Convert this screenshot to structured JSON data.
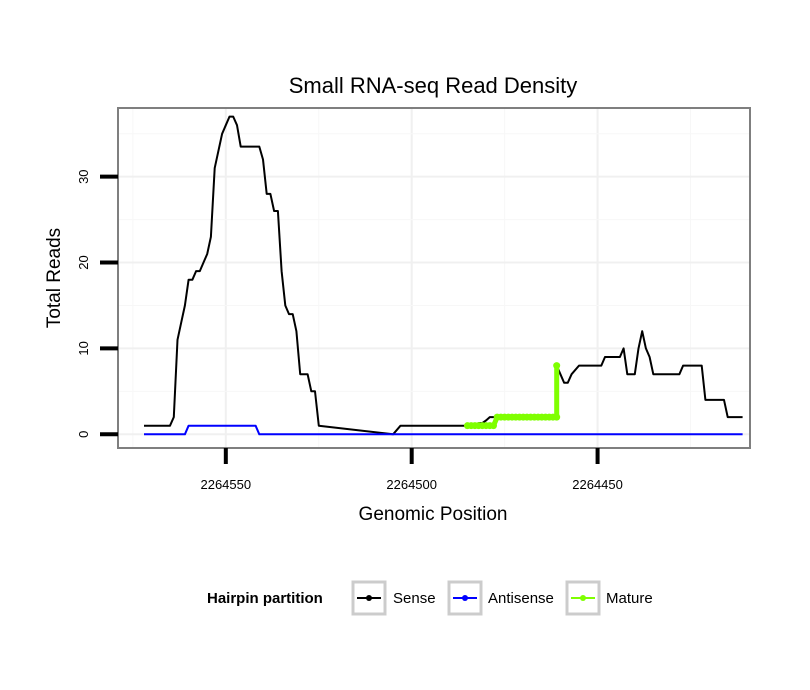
{
  "chart_data": {
    "type": "line",
    "title": "Small RNA-seq Read Density",
    "xlabel": "Genomic Position",
    "ylabel": "Total Reads",
    "xlim": [
      2264579,
      2264409
    ],
    "ylim": [
      -1.6,
      38
    ],
    "x_reversed": true,
    "x_ticks": [
      2264550,
      2264500,
      2264450
    ],
    "x_tick_labels": [
      "2264550",
      "2264500",
      "2264450"
    ],
    "y_ticks": [
      0,
      10,
      20,
      30
    ],
    "y_tick_labels": [
      "0",
      "10",
      "20",
      "30"
    ],
    "grid": true,
    "legend": {
      "title": "Hairpin partition",
      "position": "bottom",
      "entries": [
        {
          "label": "Sense",
          "color": "#000000"
        },
        {
          "label": "Antisense",
          "color": "#0000ff"
        },
        {
          "label": "Mature",
          "color": "#7fff00"
        }
      ]
    },
    "series": [
      {
        "name": "Sense",
        "color": "#000000",
        "x": [
          2264572,
          2264565,
          2264564,
          2264563,
          2264562,
          2264561,
          2264560,
          2264559,
          2264558,
          2264557,
          2264556,
          2264555,
          2264554,
          2264553,
          2264552,
          2264551,
          2264550,
          2264549,
          2264548,
          2264547,
          2264546,
          2264545,
          2264544,
          2264543,
          2264542,
          2264541,
          2264540,
          2264539,
          2264538,
          2264537,
          2264536,
          2264535,
          2264534,
          2264533,
          2264532,
          2264531,
          2264530,
          2264529,
          2264528,
          2264527,
          2264526,
          2264525,
          2264505,
          2264503,
          2264485,
          2264484,
          2264483,
          2264482,
          2264481,
          2264480,
          2264479,
          2264478,
          2264476,
          2264472,
          2264470,
          2264461,
          2264461,
          2264460,
          2264459,
          2264458,
          2264457,
          2264455,
          2264449,
          2264448,
          2264444,
          2264443,
          2264442,
          2264441,
          2264440,
          2264439,
          2264438,
          2264437,
          2264436,
          2264435,
          2264428,
          2264427,
          2264422,
          2264421,
          2264416,
          2264415,
          2264411
        ],
        "y": [
          1,
          1,
          2,
          11,
          13,
          15,
          18,
          18,
          19,
          19,
          20,
          21,
          23,
          31,
          33,
          35,
          36,
          37,
          37,
          36,
          33.5,
          33.5,
          33.5,
          33.5,
          33.5,
          33.5,
          32,
          28,
          28,
          26,
          26,
          19,
          15,
          14,
          14,
          12,
          7,
          7,
          7,
          5,
          5,
          1,
          0,
          1,
          1,
          1.1,
          1.1,
          1.3,
          1.3,
          1.6,
          2,
          2,
          2,
          2,
          2,
          2,
          8,
          7,
          6,
          6,
          7,
          8,
          8,
          9,
          9,
          10,
          7,
          7,
          7,
          10,
          12,
          10,
          9,
          7,
          7,
          8,
          8,
          4,
          4,
          2,
          2
        ]
      },
      {
        "name": "Antisense",
        "color": "#0000ff",
        "x": [
          2264572,
          2264561,
          2264560,
          2264547,
          2264546,
          2264542,
          2264541,
          2264411
        ],
        "y": [
          0,
          0,
          1,
          1,
          1,
          1,
          0,
          0
        ]
      },
      {
        "name": "Mature",
        "color": "#7fff00",
        "x": [
          2264485,
          2264484,
          2264483,
          2264482,
          2264481,
          2264480,
          2264479,
          2264478,
          2264477,
          2264476,
          2264475,
          2264474,
          2264473,
          2264472,
          2264471,
          2264470,
          2264469,
          2264468,
          2264467,
          2264466,
          2264465,
          2264464,
          2264463,
          2264462,
          2264461,
          2264461
        ],
        "y": [
          1,
          1,
          1,
          1,
          1,
          1,
          1,
          1,
          2,
          2,
          2,
          2,
          2,
          2,
          2,
          2,
          2,
          2,
          2,
          2,
          2,
          2,
          2,
          2,
          2,
          8
        ]
      }
    ]
  }
}
